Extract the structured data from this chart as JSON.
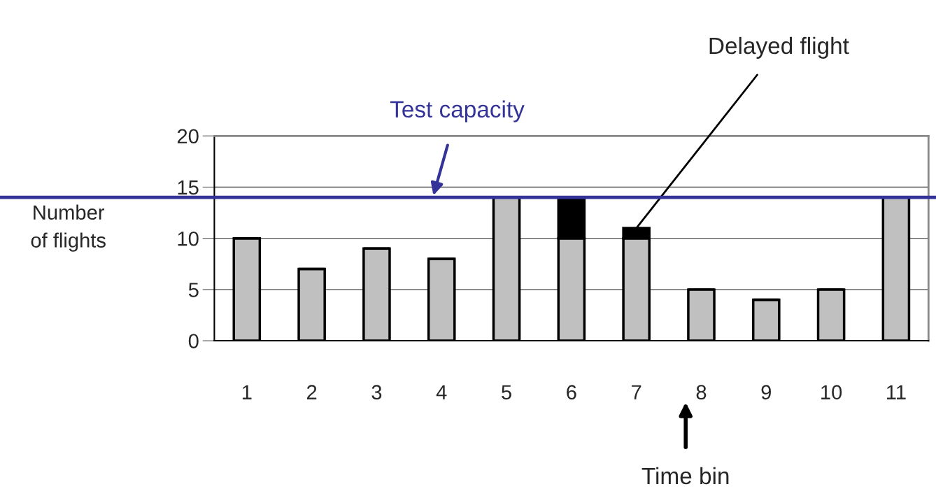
{
  "chart_data": {
    "type": "bar",
    "stacked": true,
    "ylabel": "Number\nof flights",
    "xlabel": "Time bin",
    "categories": [
      "1",
      "2",
      "3",
      "4",
      "5",
      "6",
      "7",
      "8",
      "9",
      "10",
      "11"
    ],
    "series": [
      {
        "color": "#c0c0c0",
        "values": [
          10,
          7,
          9,
          8,
          14,
          10,
          10,
          5,
          4,
          5,
          14
        ]
      },
      {
        "color": "#000000",
        "values": [
          0,
          0,
          0,
          0,
          0,
          4,
          1,
          0,
          0,
          0,
          0
        ]
      }
    ],
    "ylim": [
      0,
      20
    ],
    "yticks": [
      0,
      5,
      10,
      15,
      20
    ],
    "grid": "y",
    "legend": false,
    "ref_lines": [
      {
        "axis": "y",
        "value": 14,
        "label": "Test capacity",
        "color": "#333399"
      }
    ],
    "annotations": [
      {
        "text": "Delayed flight",
        "x": "7",
        "y": 11
      }
    ]
  }
}
